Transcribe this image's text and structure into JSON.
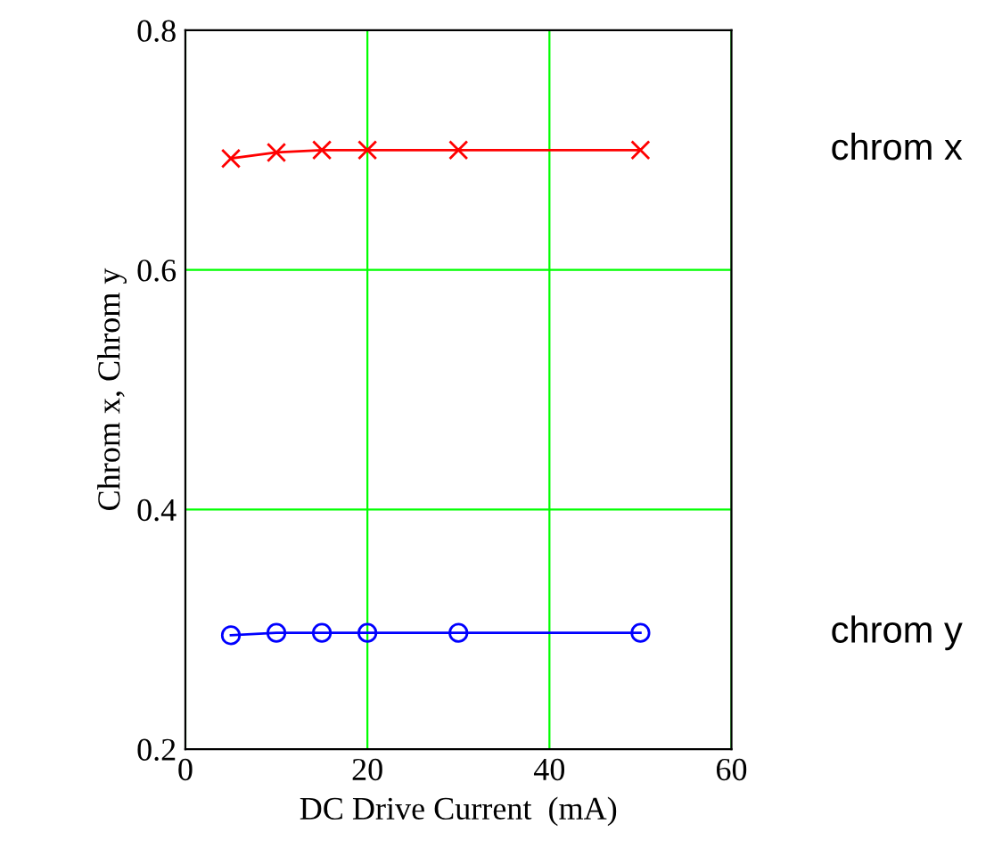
{
  "chart_data": {
    "type": "line",
    "xlabel": "DC Drive Current  (mA)",
    "ylabel": "Chrom x, Chrom y",
    "x": [
      5,
      10,
      15,
      20,
      30,
      50
    ],
    "series": [
      {
        "name": "chrom x",
        "color": "#ff0000",
        "marker": "cross",
        "values": [
          0.693,
          0.698,
          0.7,
          0.7,
          0.7,
          0.7
        ]
      },
      {
        "name": "chrom y",
        "color": "#0000ff",
        "marker": "circle",
        "values": [
          0.295,
          0.297,
          0.297,
          0.297,
          0.297,
          0.297
        ]
      }
    ],
    "xlim": [
      0,
      60
    ],
    "xticks": [
      0,
      20,
      40,
      60
    ],
    "ylim": [
      0.2,
      0.8
    ],
    "yticks": [
      0.2,
      0.4,
      0.6,
      0.8
    ],
    "grid": true,
    "legend": "right"
  }
}
